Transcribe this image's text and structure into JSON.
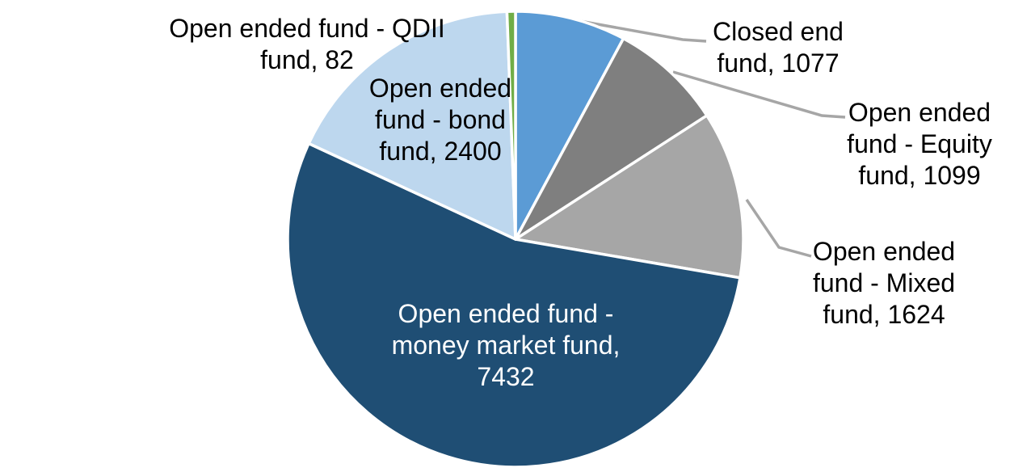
{
  "chart_data": {
    "type": "pie",
    "title": "",
    "legend_position": "none",
    "start_angle_deg": 0,
    "direction": "clockwise",
    "total": 13714,
    "slices": [
      {
        "label": "Closed end fund",
        "value": 1077,
        "color": "#5B9BD5",
        "label_placement": "outside"
      },
      {
        "label": "Open ended fund - Equity fund",
        "value": 1099,
        "color": "#7F7F7F",
        "label_placement": "outside"
      },
      {
        "label": "Open ended fund - Mixed fund",
        "value": 1624,
        "color": "#A6A6A6",
        "label_placement": "outside"
      },
      {
        "label": "Open ended fund - money market fund",
        "value": 7432,
        "color": "#1F4E74",
        "label_placement": "inside"
      },
      {
        "label": "Open ended fund - bond fund",
        "value": 2400,
        "color": "#BDD7EE",
        "label_placement": "outside"
      },
      {
        "label": "Open ended fund - QDII fund",
        "value": 82,
        "color": "#70AD47",
        "label_placement": "outside"
      }
    ]
  },
  "labels": {
    "qdii": {
      "lines": [
        "Open ended fund - QDII",
        "fund, 82"
      ]
    },
    "bond": {
      "lines": [
        "Open ended",
        "fund - bond",
        "fund, 2400"
      ]
    },
    "closed": {
      "lines": [
        "Closed end",
        "fund, 1077"
      ]
    },
    "equity": {
      "lines": [
        "Open ended",
        "fund - Equity",
        "fund, 1099"
      ]
    },
    "mixed": {
      "lines": [
        "Open ended",
        "fund - Mixed",
        "fund, 1624"
      ]
    },
    "money": {
      "lines": [
        "Open ended fund -",
        "money market fund,",
        "7432"
      ]
    }
  },
  "colors": {
    "leader_line": "#A6A6A6",
    "slice_gap_stroke": "#FFFFFF",
    "label_text": "#000000",
    "inside_label_text": "#FFFFFF",
    "background": "#FFFFFF"
  }
}
